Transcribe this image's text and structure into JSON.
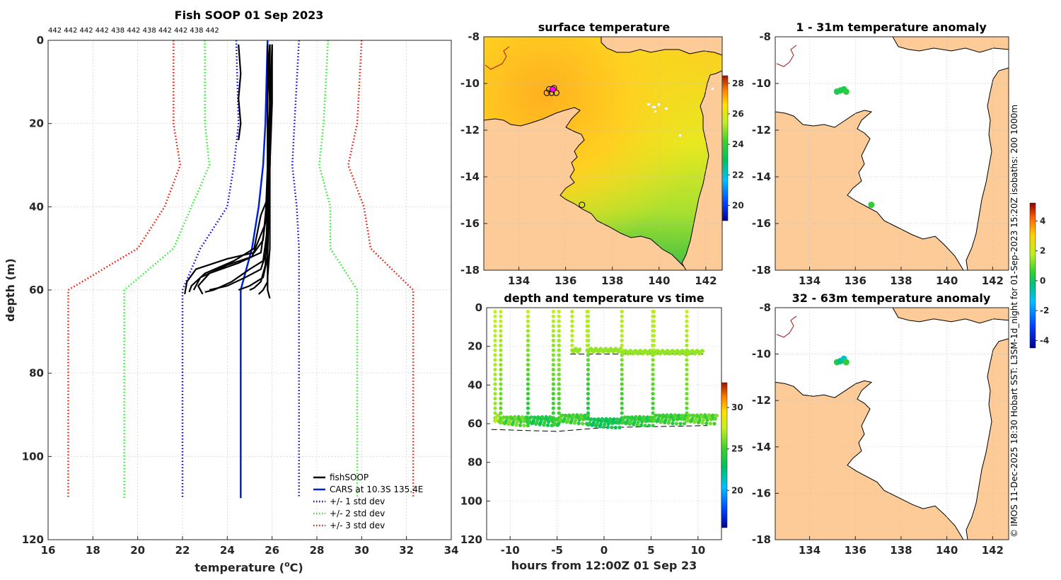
{
  "colors": {
    "fish": "#000000",
    "cars": "#0022dd",
    "std1": "#0000ee",
    "std2": "#22ee22",
    "std3": "#ee1100",
    "land": "#fccb98",
    "coast": "#000000",
    "river": "#a01818"
  },
  "chart_data": [
    {
      "type": "line",
      "title": "Fish SOOP 01 Sep 2023",
      "subtitle_counts": "442 442 442 442 438 442 438 442 442 438 442",
      "xlabel": "temperature (",
      "xlabel_sup": "o",
      "xlabel_end": "C)",
      "ylabel": "depth (m)",
      "xlim": [
        16,
        34
      ],
      "ylim": [
        0,
        120
      ],
      "y_reversed": true,
      "xticks": [
        16,
        18,
        20,
        22,
        24,
        26,
        28,
        30,
        32,
        34
      ],
      "yticks": [
        0,
        20,
        40,
        60,
        80,
        100,
        120
      ],
      "legend_position": "bottom-right",
      "series": [
        {
          "name": "fishSOOP",
          "key": "fish",
          "style": "solid",
          "profiles": [
            [
              [
                24.5,
                1
              ],
              [
                24.6,
                8
              ],
              [
                24.5,
                14
              ],
              [
                24.6,
                20
              ],
              [
                24.5,
                24
              ]
            ],
            [
              [
                25.9,
                1
              ],
              [
                25.8,
                10
              ],
              [
                25.8,
                20
              ],
              [
                25.9,
                30
              ],
              [
                25.7,
                42
              ],
              [
                25.6,
                48
              ],
              [
                25.2,
                51
              ],
              [
                24.0,
                52.5
              ],
              [
                22.6,
                55
              ],
              [
                22.2,
                58
              ],
              [
                22.1,
                61
              ]
            ],
            [
              [
                26.0,
                1
              ],
              [
                26.0,
                15
              ],
              [
                25.9,
                30
              ],
              [
                25.8,
                38
              ],
              [
                25.5,
                42
              ],
              [
                25.2,
                50
              ],
              [
                24.3,
                53
              ],
              [
                23.0,
                56
              ],
              [
                22.4,
                59
              ],
              [
                22.3,
                60.5
              ]
            ],
            [
              [
                25.8,
                2
              ],
              [
                25.9,
                15
              ],
              [
                25.8,
                30
              ],
              [
                25.7,
                44
              ],
              [
                25.1,
                52
              ],
              [
                24.0,
                54
              ],
              [
                22.8,
                57
              ],
              [
                22.5,
                60
              ]
            ],
            [
              [
                26.0,
                1
              ],
              [
                25.9,
                20
              ],
              [
                25.8,
                40
              ],
              [
                25.5,
                51
              ],
              [
                24.5,
                53.5
              ],
              [
                23.2,
                56
              ],
              [
                22.7,
                59
              ],
              [
                22.9,
                61
              ]
            ],
            [
              [
                25.9,
                1
              ],
              [
                25.9,
                25
              ],
              [
                25.8,
                45
              ],
              [
                25.6,
                53
              ],
              [
                25.0,
                55
              ],
              [
                24.2,
                58
              ],
              [
                23.4,
                60
              ],
              [
                23.0,
                60.5
              ]
            ],
            [
              [
                26.0,
                2
              ],
              [
                25.9,
                30
              ],
              [
                25.8,
                50
              ],
              [
                25.5,
                55
              ],
              [
                24.8,
                57
              ],
              [
                24.0,
                59
              ],
              [
                23.2,
                60
              ]
            ],
            [
              [
                25.9,
                1
              ],
              [
                25.9,
                30
              ],
              [
                25.8,
                52
              ],
              [
                25.6,
                57
              ],
              [
                25.0,
                59
              ],
              [
                24.5,
                60
              ]
            ],
            [
              [
                25.8,
                1
              ],
              [
                25.8,
                40
              ],
              [
                25.7,
                54
              ],
              [
                25.5,
                58
              ],
              [
                25.2,
                59.5
              ],
              [
                25.0,
                60
              ]
            ],
            [
              [
                25.9,
                2
              ],
              [
                25.9,
                50
              ],
              [
                25.8,
                57
              ],
              [
                25.8,
                60
              ],
              [
                25.9,
                62
              ]
            ],
            [
              [
                25.8,
                3
              ],
              [
                25.8,
                58
              ],
              [
                25.6,
                60
              ],
              [
                25.4,
                61
              ]
            ]
          ]
        },
        {
          "name": "CARS at 10.3S 135.4E",
          "key": "cars",
          "style": "solid",
          "points": [
            [
              25.8,
              0
            ],
            [
              25.7,
              20
            ],
            [
              25.6,
              30
            ],
            [
              25.4,
              40
            ],
            [
              25.1,
              50
            ],
            [
              24.6,
              60
            ],
            [
              24.6,
              80
            ],
            [
              24.6,
              110
            ]
          ]
        },
        {
          "name": "+/- 1 std dev",
          "key": "std1",
          "style": "dotted",
          "left": [
            [
              24.4,
              0
            ],
            [
              24.5,
              20
            ],
            [
              24.3,
              30
            ],
            [
              24.0,
              40
            ],
            [
              22.8,
              50
            ],
            [
              22.0,
              60
            ],
            [
              22.0,
              110
            ]
          ],
          "right": [
            [
              27.2,
              0
            ],
            [
              27.0,
              20
            ],
            [
              26.9,
              30
            ],
            [
              27.1,
              40
            ],
            [
              27.2,
              50
            ],
            [
              27.2,
              60
            ],
            [
              27.2,
              110
            ]
          ]
        },
        {
          "name": "+/- 2 std dev",
          "key": "std2",
          "style": "dotted",
          "left": [
            [
              23.0,
              0
            ],
            [
              23.0,
              20
            ],
            [
              23.2,
              30
            ],
            [
              22.4,
              40
            ],
            [
              21.6,
              50
            ],
            [
              19.4,
              60
            ],
            [
              19.4,
              110
            ]
          ],
          "right": [
            [
              28.5,
              0
            ],
            [
              28.3,
              20
            ],
            [
              28.1,
              30
            ],
            [
              28.6,
              40
            ],
            [
              28.6,
              50
            ],
            [
              29.8,
              60
            ],
            [
              29.8,
              110
            ]
          ]
        },
        {
          "name": "+/- 3 std dev",
          "key": "std3",
          "style": "dotted",
          "left": [
            [
              21.6,
              0
            ],
            [
              21.6,
              20
            ],
            [
              21.9,
              30
            ],
            [
              21.2,
              40
            ],
            [
              20.0,
              50
            ],
            [
              16.9,
              60
            ],
            [
              16.9,
              110
            ]
          ],
          "right": [
            [
              30.0,
              0
            ],
            [
              29.8,
              20
            ],
            [
              29.4,
              30
            ],
            [
              30.1,
              40
            ],
            [
              30.4,
              50
            ],
            [
              32.3,
              60
            ],
            [
              32.3,
              110
            ]
          ]
        }
      ]
    },
    {
      "type": "heatmap",
      "title": "surface temperature",
      "xlim": [
        132.5,
        142.7
      ],
      "ylim": [
        -18,
        -8
      ],
      "xticks": [
        134,
        136,
        138,
        140,
        142
      ],
      "yticks": [
        -8,
        -10,
        -12,
        -14,
        -16,
        -18
      ],
      "colorbar": {
        "ticks": [
          20,
          22,
          24,
          26,
          28
        ],
        "range": [
          19,
          28.5
        ]
      },
      "markers": [
        {
          "lon": 135.2,
          "lat": -10.4
        },
        {
          "lon": 135.4,
          "lat": -10.4
        },
        {
          "lon": 135.6,
          "lat": -10.4
        },
        {
          "lon": 135.5,
          "lat": -10.2
        },
        {
          "lon": 135.3,
          "lat": -10.25
        },
        {
          "lon": 136.7,
          "lat": -15.2
        }
      ],
      "highlight": {
        "lon": 135.45,
        "lat": -10.25
      }
    },
    {
      "type": "scatter",
      "title": "1 - 31m temperature anomaly",
      "xlim": [
        132.5,
        142.7
      ],
      "ylim": [
        -18,
        -8
      ],
      "xticks": [
        134,
        136,
        138,
        140,
        142
      ],
      "yticks": [
        -8,
        -10,
        -12,
        -14,
        -16,
        -18
      ],
      "points": [
        {
          "lon": 135.2,
          "lat": -10.35,
          "value": 0.2
        },
        {
          "lon": 135.35,
          "lat": -10.3,
          "value": 0.3
        },
        {
          "lon": 135.5,
          "lat": -10.25,
          "value": 0.2
        },
        {
          "lon": 135.6,
          "lat": -10.35,
          "value": 0.4
        },
        {
          "lon": 136.7,
          "lat": -15.2,
          "value": 0.5
        }
      ]
    },
    {
      "type": "scatter",
      "title": "depth and temperature vs time",
      "xlabel": "hours from 12:00Z 01 Sep 23",
      "xlim": [
        -12.5,
        12.5
      ],
      "ylim": [
        0,
        120
      ],
      "y_reversed": true,
      "xticks": [
        -10,
        -5,
        0,
        5,
        10
      ],
      "yticks": [
        0,
        20,
        40,
        60,
        80,
        100,
        120
      ],
      "colorbar": {
        "ticks": [
          20,
          25,
          30
        ],
        "range": [
          15.5,
          33
        ]
      },
      "dives": [
        {
          "start": -11.6,
          "bottom": 57,
          "end": -11.0,
          "temp": 26.5
        },
        {
          "start": -11.0,
          "bottom": 58,
          "end": -8.1,
          "temp": 25.5
        },
        {
          "start": -8.1,
          "bottom": 58,
          "end": -5.4,
          "temp": 24.0
        },
        {
          "start": -5.4,
          "bottom": 59,
          "end": -4.8,
          "temp": 24.5
        },
        {
          "start": -4.8,
          "bottom": 57,
          "end": -1.7,
          "temp": 25.0
        },
        {
          "start": -1.7,
          "bottom": 59,
          "end": 1.9,
          "temp": 23.5
        },
        {
          "start": 1.9,
          "bottom": 58,
          "end": 5.2,
          "temp": 24.5
        },
        {
          "start": 5.2,
          "bottom": 57,
          "end": 8.8,
          "temp": 24.8
        },
        {
          "start": 8.8,
          "bottom": 57,
          "end": 12.0,
          "temp": 25.5
        }
      ],
      "shallow": [
        {
          "start": -3.4,
          "end": -2.6,
          "depth": 22
        },
        {
          "start": -1.8,
          "end": 1.9,
          "depth": 22
        },
        {
          "start": 1.9,
          "end": 5.3,
          "depth": 23
        },
        {
          "start": 5.3,
          "end": 10.5,
          "depth": 23
        }
      ],
      "bathy_upper": [
        [
          -3.6,
          24
        ],
        [
          10.7,
          24
        ]
      ],
      "bathy_lower": [
        [
          -12.0,
          63
        ],
        [
          -5,
          64
        ],
        [
          0,
          62
        ],
        [
          11,
          61
        ]
      ]
    },
    {
      "type": "scatter",
      "title": "32 - 63m temperature anomaly",
      "xlim": [
        132.5,
        142.7
      ],
      "ylim": [
        -18,
        -8
      ],
      "xticks": [
        134,
        136,
        138,
        140,
        142
      ],
      "yticks": [
        -8,
        -10,
        -12,
        -14,
        -16,
        -18
      ],
      "colorbar": {
        "ticks": [
          -4,
          -2,
          0,
          2,
          4
        ],
        "range": [
          -4.5,
          5.2
        ]
      },
      "points": [
        {
          "lon": 135.2,
          "lat": -10.35,
          "value": 0.3
        },
        {
          "lon": 135.35,
          "lat": -10.3,
          "value": -0.3
        },
        {
          "lon": 135.5,
          "lat": -10.2,
          "value": -1.0
        },
        {
          "lon": 135.6,
          "lat": -10.35,
          "value": 0.5
        }
      ]
    }
  ],
  "credit": "© IMOS 11-Dec-2025 18:30 Hobart SST: L3SM-1d_night for 01-Sep-2023 15:20Z isobaths: 200  1000m"
}
